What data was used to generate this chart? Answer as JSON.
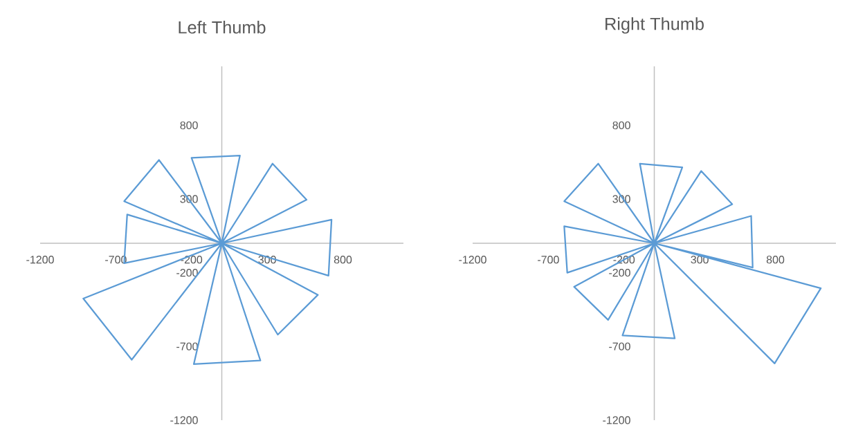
{
  "chart_data": [
    {
      "type": "line",
      "title": "Left Thumb",
      "color": "#5b9bd5",
      "marker": "none",
      "line_style": "solid",
      "grid": false,
      "x": [
        0,
        -200,
        120,
        0,
        335,
        560,
        0,
        725,
        705,
        0,
        635,
        370,
        0,
        255,
        -185,
        0,
        -595,
        -915,
        0,
        -645,
        -625,
        0,
        -645,
        -415,
        0,
        -200
      ],
      "values": [
        0,
        580,
        595,
        0,
        540,
        295,
        0,
        160,
        -220,
        0,
        -350,
        -620,
        0,
        -795,
        -820,
        0,
        -790,
        -375,
        0,
        -135,
        195,
        0,
        285,
        565,
        0,
        580
      ],
      "xlim": [
        -1200,
        1200
      ],
      "ylim": [
        -1200,
        1200
      ],
      "xticks": [
        -1200,
        -700,
        -200,
        300,
        800
      ],
      "yticks": [
        -1200,
        -700,
        -200,
        300,
        800
      ]
    },
    {
      "type": "line",
      "title": "Right Thumb",
      "color": "#5b9bd5",
      "marker": "none",
      "line_style": "solid",
      "grid": false,
      "x": [
        0,
        -95,
        185,
        0,
        310,
        515,
        0,
        640,
        650,
        0,
        1100,
        795,
        0,
        135,
        -210,
        0,
        -305,
        -530,
        0,
        -575,
        -595,
        0,
        -595,
        -370,
        0,
        -95
      ],
      "values": [
        0,
        540,
        515,
        0,
        490,
        265,
        0,
        185,
        -165,
        0,
        -305,
        -815,
        0,
        -645,
        -625,
        0,
        -520,
        -295,
        0,
        -200,
        115,
        0,
        285,
        540,
        0,
        540
      ],
      "xlim": [
        -1200,
        1200
      ],
      "ylim": [
        -1200,
        1200
      ],
      "xticks": [
        -1200,
        -700,
        -200,
        300,
        800
      ],
      "yticks": [
        -1200,
        -700,
        -200,
        300,
        800
      ]
    }
  ]
}
